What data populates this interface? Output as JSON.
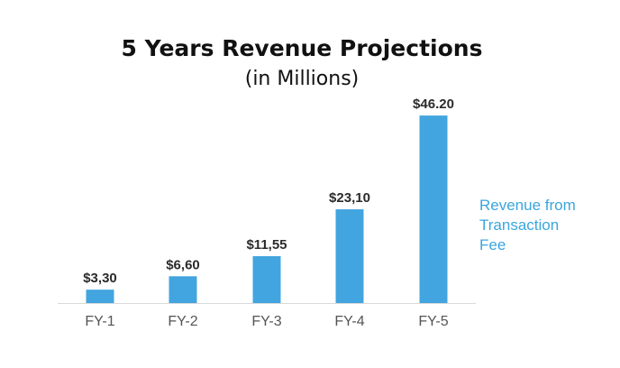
{
  "chart_data": {
    "type": "bar",
    "title": "5 Years Revenue Projections",
    "subtitle": "(in Millions)",
    "categories": [
      "FY-1",
      "FY-2",
      "FY-3",
      "FY-4",
      "FY-5"
    ],
    "series": [
      {
        "name": "Revenue from Transaction Fee",
        "values": [
          3.3,
          6.6,
          11.55,
          23.1,
          46.2
        ],
        "labels": [
          "$3,30",
          "$6,60",
          "$11,55",
          "$23,10",
          "$46.20"
        ],
        "color": "#43a5df"
      }
    ],
    "ylim": [
      0,
      48
    ],
    "grid": false,
    "legend": {
      "placement": "right",
      "lines": [
        "Revenue from",
        "Transaction",
        "Fee"
      ],
      "color": "#3aa6dd"
    },
    "axis_color": "#d9d9d9"
  }
}
